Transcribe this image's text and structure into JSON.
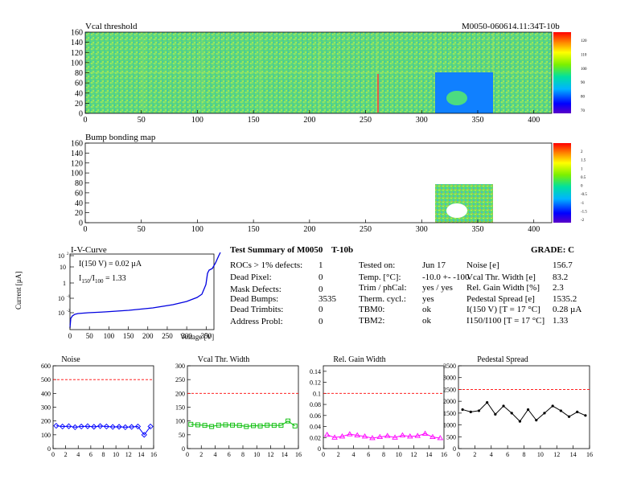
{
  "vcal_map": {
    "title": "Vcal threshold",
    "module_id": "M0050-060614.11:34T-10b",
    "xlim": [
      0,
      416
    ],
    "ylim": [
      0,
      160
    ],
    "xticks": [
      "0",
      "50",
      "100",
      "150",
      "200",
      "250",
      "300",
      "350",
      "400"
    ],
    "yticks": [
      "0",
      "20",
      "40",
      "60",
      "80",
      "100",
      "120",
      "140",
      "160"
    ],
    "palette_labels": [
      "120",
      "110",
      "100",
      "90",
      "80",
      "70"
    ]
  },
  "bump_map": {
    "title": "Bump bonding map",
    "xlim": [
      0,
      416
    ],
    "ylim": [
      0,
      160
    ],
    "xticks": [
      "0",
      "50",
      "100",
      "150",
      "200",
      "250",
      "300",
      "350",
      "400"
    ],
    "yticks": [
      "0",
      "20",
      "40",
      "60",
      "80",
      "100",
      "120",
      "140",
      "160"
    ],
    "palette_labels": [
      "2",
      "1.5",
      "1",
      "0.5",
      "0",
      "-0.5",
      "-1",
      "-1.5",
      "-2"
    ]
  },
  "iv_curve": {
    "title": "I-V-Curve",
    "ylabel": "Current [µA]",
    "xlabel": "Voltage [V]",
    "xticks": [
      "0",
      "50",
      "100",
      "150",
      "200",
      "250",
      "300",
      "350"
    ],
    "annot_current": "I(150 V) = 0.02 µA",
    "annot_ratio": "I",
    "annot_ratio_sub1": "150",
    "annot_ratio_sub2": "100",
    "annot_ratio_val": " = 1.33"
  },
  "summary": {
    "title_left": "Test Summary of M0050",
    "title_mid": "T-10b",
    "grade": "GRADE:  C",
    "col1_labels": [
      "ROCs > 1% defects:",
      "Dead Pixel:",
      "Mask Defects:",
      "Dead Bumps:",
      "Dead Trimbits:",
      "Address Probl:"
    ],
    "col1_values": [
      "1",
      "0",
      "0",
      "3535",
      "0",
      "0"
    ],
    "col2_labels": [
      "Tested on:",
      "Temp. [°C]:",
      "Trim / phCal:",
      "Therm. cycl.:",
      "TBM0:",
      "TBM2:"
    ],
    "col2_values": [
      "Jun 17",
      "-10.0 +- -100",
      "yes / yes",
      "yes",
      "ok",
      "ok"
    ],
    "col3_labels": [
      "Noise [e]",
      "Vcal Thr. Width [e]",
      "Rel. Gain Width [%]",
      "Pedestal Spread [e]",
      "I(150 V) [T = 17 °C]",
      "I150/I100   [T = 17 °C]"
    ],
    "col3_values": [
      "156.7",
      "83.2",
      "2.3",
      "1535.2",
      "0.28 µA",
      "1.33"
    ]
  },
  "chart_data": [
    {
      "type": "line",
      "title": "Noise",
      "x": [
        0,
        1,
        2,
        3,
        4,
        5,
        6,
        7,
        8,
        9,
        10,
        11,
        12,
        13,
        14,
        15
      ],
      "values": [
        165,
        160,
        162,
        155,
        160,
        162,
        158,
        163,
        160,
        157,
        158,
        155,
        157,
        160,
        100,
        160
      ],
      "ylim": [
        0,
        600
      ],
      "xlim": [
        0,
        16
      ],
      "yticks": [
        "0",
        "100",
        "200",
        "300",
        "400",
        "500",
        "600"
      ],
      "xticks": [
        "0",
        "2",
        "4",
        "6",
        "8",
        "10",
        "12",
        "14",
        "16"
      ],
      "limit": 500,
      "color": "#0000ff",
      "marker": "diamond"
    },
    {
      "type": "line",
      "title": "Vcal Thr. Width",
      "x": [
        0,
        1,
        2,
        3,
        4,
        5,
        6,
        7,
        8,
        9,
        10,
        11,
        12,
        13,
        14,
        15
      ],
      "values": [
        88,
        86,
        84,
        80,
        85,
        86,
        85,
        84,
        80,
        83,
        82,
        85,
        84,
        84,
        100,
        82
      ],
      "ylim": [
        0,
        300
      ],
      "xlim": [
        0,
        16
      ],
      "yticks": [
        "0",
        "50",
        "100",
        "150",
        "200",
        "250",
        "300"
      ],
      "xticks": [
        "0",
        "2",
        "4",
        "6",
        "8",
        "10",
        "12",
        "14",
        "16"
      ],
      "limit": 200,
      "color": "#00bb00",
      "marker": "square"
    },
    {
      "type": "line",
      "title": "Rel. Gain Width",
      "x": [
        0,
        1,
        2,
        3,
        4,
        5,
        6,
        7,
        8,
        9,
        10,
        11,
        12,
        13,
        14,
        15
      ],
      "values": [
        0.025,
        0.02,
        0.022,
        0.026,
        0.024,
        0.022,
        0.019,
        0.021,
        0.023,
        0.02,
        0.024,
        0.022,
        0.023,
        0.027,
        0.021,
        0.019
      ],
      "ylim": [
        0,
        0.15
      ],
      "xlim": [
        0,
        16
      ],
      "yticks": [
        "0",
        "0.02",
        "0.04",
        "0.06",
        "0.08",
        "0.1",
        "0.12",
        "0.14"
      ],
      "xticks": [
        "0",
        "2",
        "4",
        "6",
        "8",
        "10",
        "12",
        "14",
        "16"
      ],
      "limit": 0.1,
      "color": "#ff00ff",
      "marker": "triangle"
    },
    {
      "type": "line",
      "title": "Pedestal Spread",
      "x": [
        0,
        1,
        2,
        3,
        4,
        5,
        6,
        7,
        8,
        9,
        10,
        11,
        12,
        13,
        14,
        15
      ],
      "values": [
        1650,
        1550,
        1600,
        1950,
        1450,
        1800,
        1500,
        1150,
        1650,
        1200,
        1500,
        1800,
        1600,
        1350,
        1550,
        1400
      ],
      "ylim": [
        0,
        3500
      ],
      "xlim": [
        0,
        16
      ],
      "yticks": [
        "0",
        "500",
        "1000",
        "1500",
        "2000",
        "2500",
        "3000",
        "3500"
      ],
      "xticks": [
        "0",
        "2",
        "4",
        "6",
        "8",
        "10",
        "12",
        "14",
        "16"
      ],
      "limit": 2500,
      "color": "#000000",
      "marker": "point"
    }
  ]
}
